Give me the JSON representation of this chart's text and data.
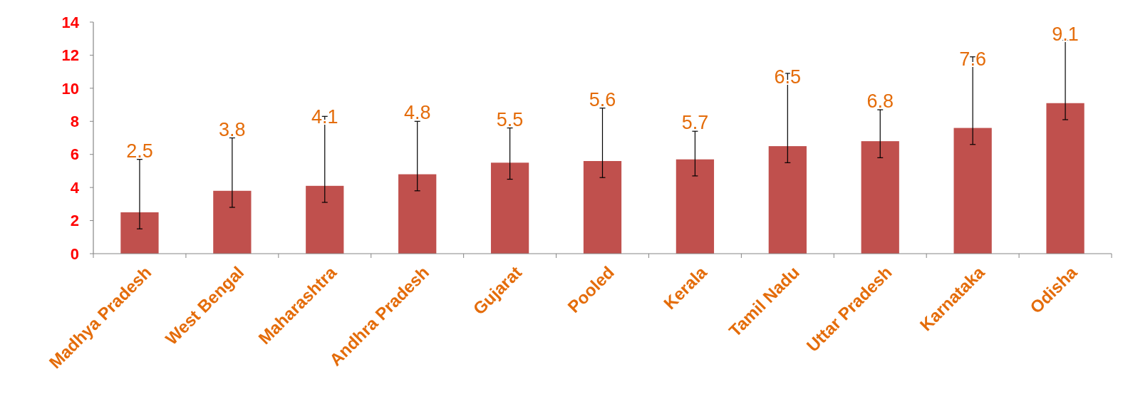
{
  "chart_data": {
    "type": "bar",
    "categories": [
      "Madhya Pradesh",
      "West Bengal",
      "Maharashtra",
      "Andhra Pradesh",
      "Gujarat",
      "Pooled",
      "Kerala",
      "Tamil Nadu",
      "Uttar Pradesh",
      "Karnataka",
      "Odisha"
    ],
    "values": [
      2.5,
      3.8,
      4.1,
      4.8,
      5.5,
      5.6,
      5.7,
      6.5,
      6.8,
      7.6,
      9.1
    ],
    "errors": [
      [
        1.5,
        5.7
      ],
      [
        2.8,
        7.0
      ],
      [
        3.1,
        8.3
      ],
      [
        3.8,
        8.0
      ],
      [
        4.5,
        7.6
      ],
      [
        4.6,
        8.8
      ],
      [
        4.7,
        7.4
      ],
      [
        5.5,
        10.9
      ],
      [
        5.8,
        8.7
      ],
      [
        6.6,
        11.9
      ],
      [
        8.1,
        12.9
      ]
    ],
    "color": "#c0504d",
    "ylim": [
      0,
      14
    ],
    "yticks": [
      0,
      2,
      4,
      6,
      8,
      10,
      12,
      14
    ],
    "data_labels": true,
    "grid": false
  }
}
